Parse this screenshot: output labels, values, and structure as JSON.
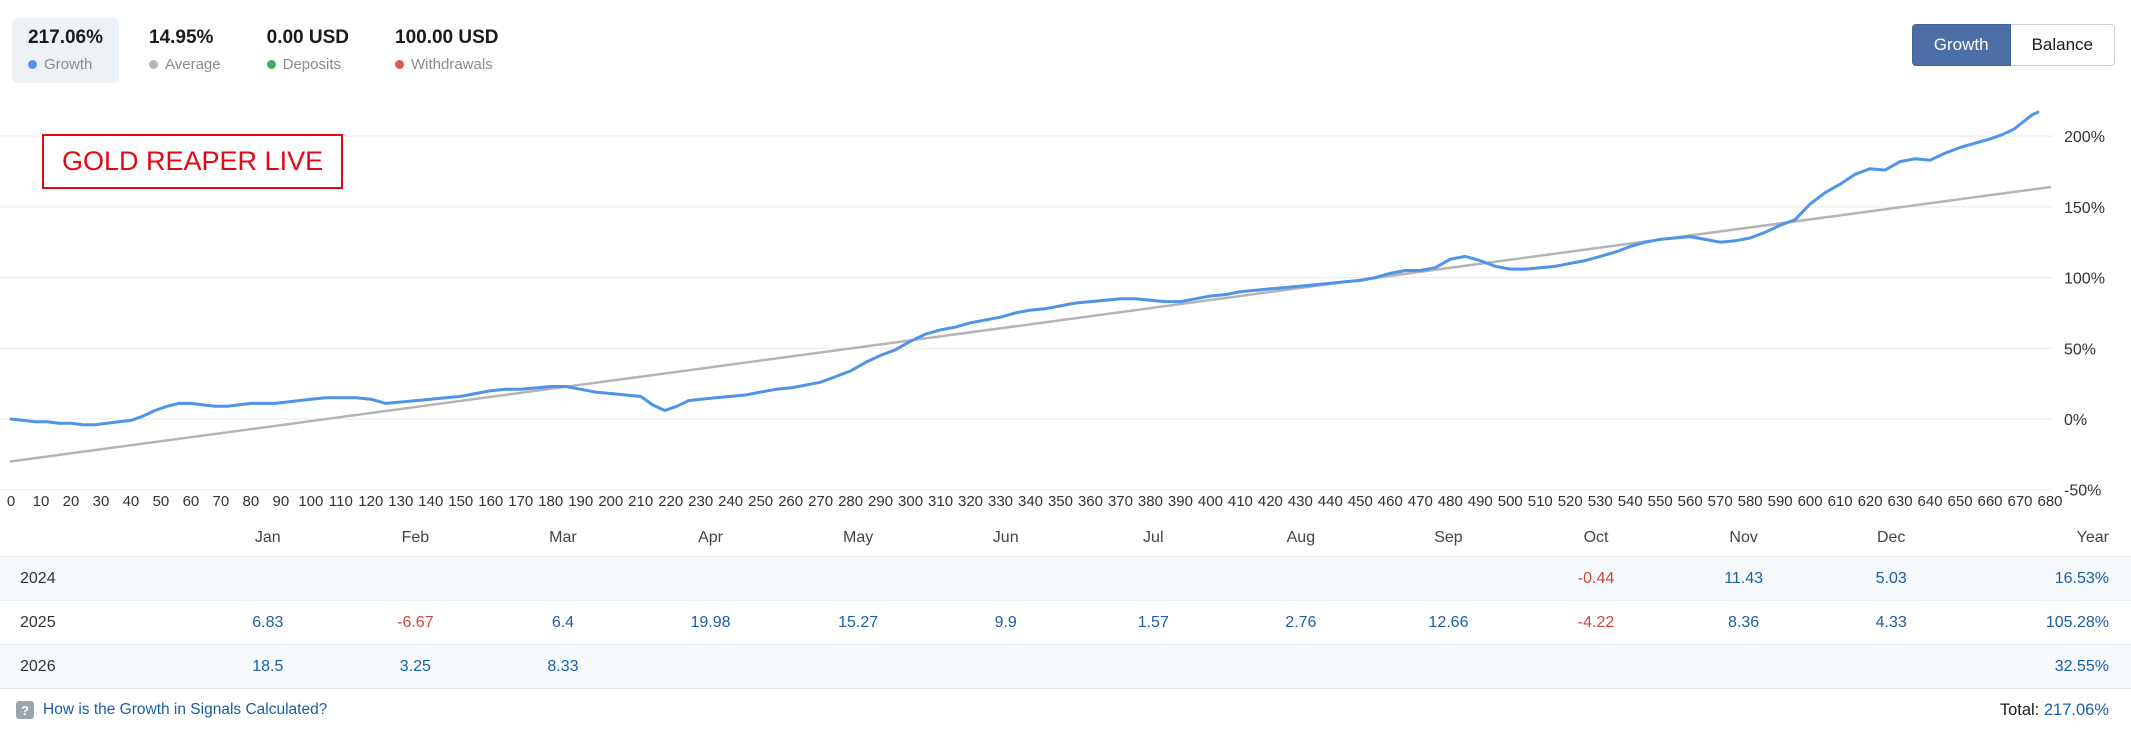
{
  "header": {
    "stats": [
      {
        "value": "217.06%",
        "label": "Growth",
        "dot_color": "#4f94e8",
        "highlighted": true
      },
      {
        "value": "14.95%",
        "label": "Average",
        "dot_color": "#b5b5b5",
        "highlighted": false
      },
      {
        "value": "0.00 USD",
        "label": "Deposits",
        "dot_color": "#3faa58",
        "highlighted": false
      },
      {
        "value": "100.00 USD",
        "label": "Withdrawals",
        "dot_color": "#e0594e",
        "highlighted": false
      }
    ],
    "toggle": {
      "growth_label": "Growth",
      "balance_label": "Balance",
      "active": "Growth"
    }
  },
  "chart_data": {
    "type": "line",
    "annotation": "GOLD REAPER LIVE",
    "xlabel": "",
    "ylabel": "",
    "xlim": [
      0,
      680
    ],
    "ylim": [
      -55,
      240
    ],
    "grid": true,
    "axis_side": "right",
    "y_tick_suffix": "%",
    "y_ticks": [
      200,
      150,
      100,
      50,
      0,
      -50
    ],
    "x_ticks": [
      0,
      10,
      20,
      30,
      40,
      50,
      60,
      70,
      80,
      90,
      100,
      110,
      120,
      130,
      140,
      150,
      160,
      170,
      180,
      190,
      200,
      210,
      220,
      230,
      240,
      250,
      260,
      270,
      280,
      290,
      300,
      310,
      320,
      330,
      340,
      350,
      360,
      370,
      380,
      390,
      400,
      410,
      420,
      430,
      440,
      450,
      460,
      470,
      480,
      490,
      500,
      510,
      520,
      530,
      540,
      550,
      560,
      570,
      580,
      590,
      600,
      610,
      620,
      630,
      640,
      650,
      660,
      670,
      680
    ],
    "series": [
      {
        "name": "Trend",
        "color": "#b4b4b4",
        "width": 2.5,
        "points": [
          [
            0,
            -30
          ],
          [
            680,
            164
          ]
        ]
      },
      {
        "name": "Growth",
        "color": "#4f94e8",
        "width": 3,
        "points": [
          [
            0,
            0
          ],
          [
            4,
            -1
          ],
          [
            8,
            -2
          ],
          [
            12,
            -2
          ],
          [
            16,
            -3
          ],
          [
            20,
            -3
          ],
          [
            24,
            -4
          ],
          [
            28,
            -4
          ],
          [
            32,
            -3
          ],
          [
            36,
            -2
          ],
          [
            40,
            -1
          ],
          [
            44,
            2
          ],
          [
            48,
            6
          ],
          [
            52,
            9
          ],
          [
            56,
            11
          ],
          [
            60,
            11
          ],
          [
            64,
            10
          ],
          [
            68,
            9
          ],
          [
            72,
            9
          ],
          [
            76,
            10
          ],
          [
            80,
            11
          ],
          [
            84,
            11
          ],
          [
            88,
            11
          ],
          [
            92,
            12
          ],
          [
            96,
            13
          ],
          [
            100,
            14
          ],
          [
            105,
            15
          ],
          [
            110,
            15
          ],
          [
            115,
            15
          ],
          [
            120,
            14
          ],
          [
            125,
            11
          ],
          [
            130,
            12
          ],
          [
            135,
            13
          ],
          [
            140,
            14
          ],
          [
            145,
            15
          ],
          [
            150,
            16
          ],
          [
            155,
            18
          ],
          [
            160,
            20
          ],
          [
            165,
            21
          ],
          [
            170,
            21
          ],
          [
            175,
            22
          ],
          [
            180,
            23
          ],
          [
            185,
            23
          ],
          [
            190,
            21
          ],
          [
            195,
            19
          ],
          [
            200,
            18
          ],
          [
            205,
            17
          ],
          [
            210,
            16
          ],
          [
            214,
            10
          ],
          [
            218,
            6
          ],
          [
            222,
            9
          ],
          [
            226,
            13
          ],
          [
            230,
            14
          ],
          [
            235,
            15
          ],
          [
            240,
            16
          ],
          [
            245,
            17
          ],
          [
            250,
            19
          ],
          [
            255,
            21
          ],
          [
            260,
            22
          ],
          [
            265,
            24
          ],
          [
            270,
            26
          ],
          [
            275,
            30
          ],
          [
            280,
            34
          ],
          [
            285,
            40
          ],
          [
            290,
            45
          ],
          [
            295,
            49
          ],
          [
            300,
            55
          ],
          [
            305,
            60
          ],
          [
            310,
            63
          ],
          [
            315,
            65
          ],
          [
            320,
            68
          ],
          [
            325,
            70
          ],
          [
            330,
            72
          ],
          [
            335,
            75
          ],
          [
            340,
            77
          ],
          [
            345,
            78
          ],
          [
            350,
            80
          ],
          [
            355,
            82
          ],
          [
            360,
            83
          ],
          [
            365,
            84
          ],
          [
            370,
            85
          ],
          [
            375,
            85
          ],
          [
            380,
            84
          ],
          [
            385,
            83
          ],
          [
            390,
            83
          ],
          [
            395,
            85
          ],
          [
            400,
            87
          ],
          [
            405,
            88
          ],
          [
            410,
            90
          ],
          [
            415,
            91
          ],
          [
            420,
            92
          ],
          [
            425,
            93
          ],
          [
            430,
            94
          ],
          [
            435,
            95
          ],
          [
            440,
            96
          ],
          [
            445,
            97
          ],
          [
            450,
            98
          ],
          [
            455,
            100
          ],
          [
            460,
            103
          ],
          [
            465,
            105
          ],
          [
            470,
            105
          ],
          [
            475,
            107
          ],
          [
            480,
            113
          ],
          [
            485,
            115
          ],
          [
            490,
            112
          ],
          [
            495,
            108
          ],
          [
            500,
            106
          ],
          [
            505,
            106
          ],
          [
            510,
            107
          ],
          [
            515,
            108
          ],
          [
            520,
            110
          ],
          [
            525,
            112
          ],
          [
            530,
            115
          ],
          [
            535,
            118
          ],
          [
            540,
            122
          ],
          [
            545,
            125
          ],
          [
            550,
            127
          ],
          [
            555,
            128
          ],
          [
            560,
            129
          ],
          [
            565,
            127
          ],
          [
            570,
            125
          ],
          [
            575,
            126
          ],
          [
            580,
            128
          ],
          [
            585,
            132
          ],
          [
            590,
            137
          ],
          [
            595,
            141
          ],
          [
            600,
            152
          ],
          [
            605,
            160
          ],
          [
            610,
            166
          ],
          [
            615,
            173
          ],
          [
            620,
            177
          ],
          [
            625,
            176
          ],
          [
            630,
            182
          ],
          [
            635,
            184
          ],
          [
            640,
            183
          ],
          [
            645,
            188
          ],
          [
            650,
            192
          ],
          [
            655,
            195
          ],
          [
            660,
            198
          ],
          [
            664,
            201
          ],
          [
            668,
            205
          ],
          [
            671,
            210
          ],
          [
            674,
            215
          ],
          [
            676,
            217
          ]
        ]
      }
    ]
  },
  "table": {
    "month_headers": [
      "Jan",
      "Feb",
      "Mar",
      "Apr",
      "May",
      "Jun",
      "Jul",
      "Aug",
      "Sep",
      "Oct",
      "Nov",
      "Dec",
      "Year"
    ],
    "rows": [
      {
        "year": "2024",
        "values": [
          "",
          "",
          "",
          "",
          "",
          "",
          "",
          "",
          "",
          "-0.44",
          "11.43",
          "5.03"
        ],
        "total": "16.53%"
      },
      {
        "year": "2025",
        "values": [
          "6.83",
          "-6.67",
          "6.4",
          "19.98",
          "15.27",
          "9.9",
          "1.57",
          "2.76",
          "12.66",
          "-4.22",
          "8.36",
          "4.33"
        ],
        "total": "105.28%"
      },
      {
        "year": "2026",
        "values": [
          "18.5",
          "3.25",
          "8.33",
          "",
          "",
          "",
          "",
          "",
          "",
          "",
          "",
          ""
        ],
        "total": "32.55%"
      }
    ]
  },
  "footer": {
    "help_link": "How is the Growth in Signals Calculated?",
    "total_label": "Total:",
    "total_value": "217.06%"
  },
  "colors": {
    "positive": "#1b5ea6",
    "negative": "#c9463d",
    "accent_blue": "#4f94e8",
    "trend_gray": "#b4b4b4",
    "annotation_red": "#e30613",
    "active_button": "#4b6fa4"
  }
}
